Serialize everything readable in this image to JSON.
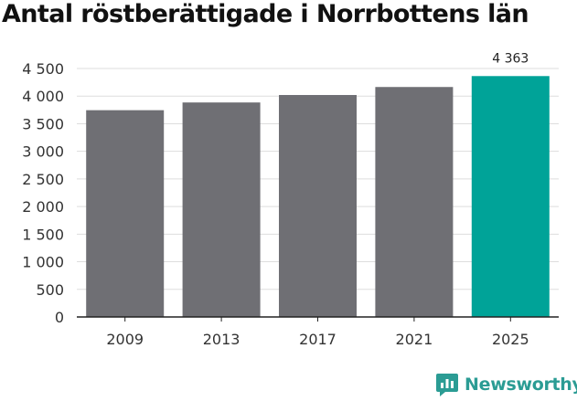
{
  "colors": {
    "bar_default": "#6f6f74",
    "bar_highlight": "#00a398",
    "gridline": "#dddddd",
    "axis": "#222222",
    "brand": "#2b9c94"
  },
  "brand": {
    "name": "Newsworthy",
    "icon": "newsworthy-logo-icon"
  },
  "chart_data": {
    "type": "bar",
    "title": "Antal röstberättigade i Norrbottens län",
    "xlabel": "",
    "ylabel": "",
    "categories": [
      "2009",
      "2013",
      "2017",
      "2021",
      "2025"
    ],
    "values": [
      3745,
      3885,
      4020,
      4165,
      4363
    ],
    "highlight_index": 4,
    "data_labels": [
      {
        "index": 4,
        "text": "4 363"
      }
    ],
    "ylim": [
      0,
      4500
    ],
    "yticks": [
      0,
      500,
      1000,
      1500,
      2000,
      2500,
      3000,
      3500,
      4000,
      4500
    ],
    "ytick_labels": [
      "0",
      "500",
      "1 000",
      "1 500",
      "2 000",
      "2 500",
      "3 000",
      "3 500",
      "4 000",
      "4 500"
    ],
    "grid": true,
    "legend": "none"
  }
}
